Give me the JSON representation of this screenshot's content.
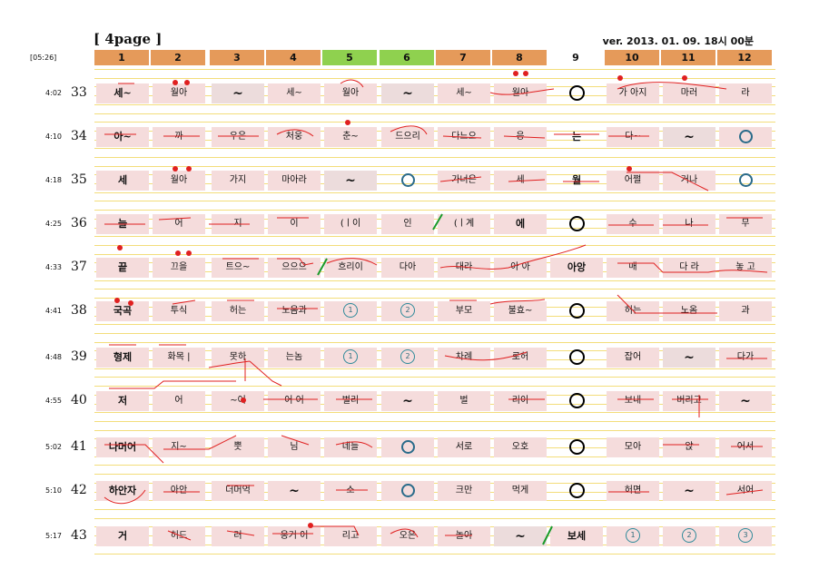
{
  "title": "[ 4page ]",
  "version": "ver. 2013. 01. 09. 18시 00분",
  "total_time": "[05:26]",
  "columns": [
    {
      "label": "1",
      "style": "orange"
    },
    {
      "label": "2",
      "style": "orange"
    },
    {
      "label": "3",
      "style": "orange"
    },
    {
      "label": "4",
      "style": "orange"
    },
    {
      "label": "5",
      "style": "green"
    },
    {
      "label": "6",
      "style": "green"
    },
    {
      "label": "7",
      "style": "orange"
    },
    {
      "label": "8",
      "style": "orange"
    },
    {
      "label": "9",
      "style": "plain"
    },
    {
      "label": "10",
      "style": "orange"
    },
    {
      "label": "11",
      "style": "orange"
    },
    {
      "label": "12",
      "style": "orange"
    }
  ],
  "rows": [
    {
      "time": "4:02",
      "num": "33",
      "cells": [
        "세~",
        "월아",
        "~",
        "세~",
        "월아",
        "~",
        "세~",
        "월아",
        "O",
        "가 아지",
        "마러",
        "라"
      ]
    },
    {
      "time": "4:10",
      "num": "34",
      "cells": [
        "아~",
        "까",
        "우은",
        "처웅",
        "춘~",
        "드으리",
        "다느으",
        "응",
        "는",
        "다~",
        "~",
        "o"
      ]
    },
    {
      "time": "4:18",
      "num": "35",
      "cells": [
        "세",
        "월아",
        "가지",
        "마아라",
        "~",
        "o",
        "가너은",
        "세",
        "월",
        "어쩔",
        "거나",
        "o"
      ]
    },
    {
      "time": "4:25",
      "num": "36",
      "cells": [
        "늘",
        "어",
        "지",
        "이",
        "(ㅣ이",
        "인",
        "(ㅣ계",
        "에",
        "O",
        "수",
        "나",
        "무"
      ]
    },
    {
      "time": "4:33",
      "num": "37",
      "cells": [
        "끝",
        "끄을",
        "트으~",
        "으으으",
        "흐리이",
        "다아",
        "대라",
        "아 아",
        "아앙",
        "매",
        "다 라",
        "놓 고"
      ]
    },
    {
      "time": "4:41",
      "num": "38",
      "cells": [
        "국곡",
        "투식",
        "허는",
        "노옴과",
        "1",
        "2",
        "부모",
        "불효~",
        "O",
        "허는",
        "노옴",
        "과"
      ]
    },
    {
      "time": "4:48",
      "num": "39",
      "cells": [
        "형제",
        "화목 |",
        "못하",
        "는놈",
        "1",
        "2",
        "차례",
        "로허",
        "O",
        "잡어",
        "~",
        "다가"
      ]
    },
    {
      "time": "4:55",
      "num": "40",
      "cells": [
        "저",
        "어",
        "~어",
        "어 어",
        "벌리",
        "~",
        "벌",
        "리이",
        "O",
        "보내",
        "버리고",
        "~"
      ]
    },
    {
      "time": "5:02",
      "num": "41",
      "cells": [
        "나머어",
        "지~",
        "뿟",
        "님",
        "네들",
        "o",
        "서로",
        "오호",
        "O",
        "모아",
        "앉",
        "어서"
      ]
    },
    {
      "time": "5:10",
      "num": "42",
      "cells": [
        "하안자",
        "아안",
        "더머억",
        "~",
        "소",
        "o",
        "크만",
        "먹게",
        "O",
        "허면",
        "~",
        "서어"
      ]
    },
    {
      "time": "5:17",
      "num": "43",
      "cells": [
        "거",
        "허드",
        "러",
        "옹거 어",
        "리고",
        "오은",
        "놀아",
        "~",
        "보세",
        "1",
        "2",
        "3"
      ]
    }
  ],
  "colors": {
    "orange": "#e59a5a",
    "green": "#8fd14f",
    "pink": "#f5dcdc",
    "red_ink": "#e02020",
    "line": "#f3dd7a"
  }
}
